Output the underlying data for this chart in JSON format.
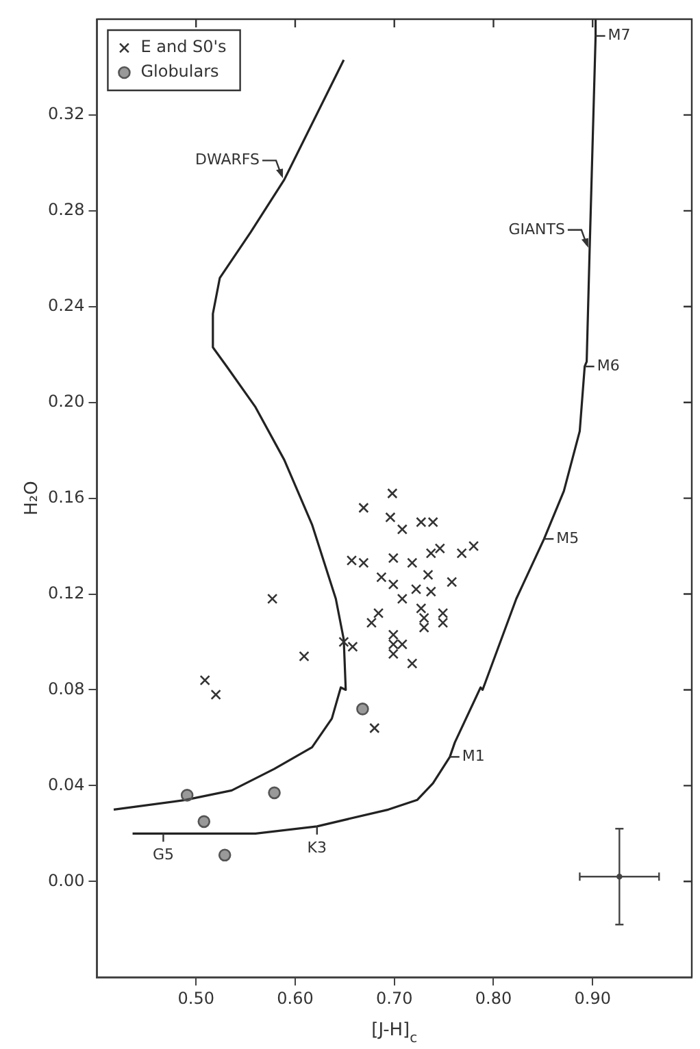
{
  "chart_data": {
    "type": "scatter",
    "xlabel": "[J-H]$_{c}$",
    "ylabel": "H₂O",
    "xlim": [
      0.4,
      1.0
    ],
    "ylim": [
      -0.04,
      0.36
    ],
    "xticks": [
      {
        "value": 0.5,
        "label": "0.50"
      },
      {
        "value": 0.6,
        "label": "0.60"
      },
      {
        "value": 0.7,
        "label": "0.70"
      },
      {
        "value": 0.8,
        "label": "0.80"
      },
      {
        "value": 0.9,
        "label": "0.90"
      }
    ],
    "yticks": [
      {
        "value": 0,
        "label": "0.00"
      },
      {
        "value": 0.04,
        "label": "0.04"
      },
      {
        "value": 0.08,
        "label": "0.08"
      },
      {
        "value": 0.12,
        "label": "0.12"
      },
      {
        "value": 0.16,
        "label": "0.16"
      },
      {
        "value": 0.2,
        "label": "0.20"
      },
      {
        "value": 0.24,
        "label": "0.24"
      },
      {
        "value": 0.28,
        "label": "0.28"
      },
      {
        "value": 0.32,
        "label": "0.32"
      }
    ],
    "grid": false,
    "legend": "top left",
    "series": [
      {
        "name": "E and S0's",
        "marker": "cross",
        "color": "#333333",
        "x": [
          0.698,
          0.669,
          0.696,
          0.708,
          0.727,
          0.739,
          0.746,
          0.737,
          0.78,
          0.768,
          0.657,
          0.669,
          0.699,
          0.718,
          0.734,
          0.687,
          0.699,
          0.758,
          0.722,
          0.737,
          0.708,
          0.727,
          0.749,
          0.749,
          0.684,
          0.677,
          0.73,
          0.73,
          0.649,
          0.658,
          0.699,
          0.699,
          0.708,
          0.699,
          0.718,
          0.577,
          0.609,
          0.509,
          0.52,
          0.68
        ],
        "values": [
          0.162,
          0.156,
          0.152,
          0.147,
          0.15,
          0.15,
          0.139,
          0.137,
          0.14,
          0.137,
          0.134,
          0.133,
          0.135,
          0.133,
          0.128,
          0.127,
          0.124,
          0.125,
          0.122,
          0.121,
          0.118,
          0.114,
          0.112,
          0.108,
          0.112,
          0.108,
          0.11,
          0.106,
          0.1,
          0.098,
          0.103,
          0.099,
          0.099,
          0.095,
          0.091,
          0.118,
          0.094,
          0.084,
          0.078,
          0.064
        ]
      },
      {
        "name": "Globulars",
        "marker": "circle",
        "color": "#555555",
        "x": [
          0.668,
          0.491,
          0.579,
          0.508,
          0.529
        ],
        "values": [
          0.072,
          0.036,
          0.037,
          0.025,
          0.011
        ]
      },
      {
        "type": "line",
        "marker": "none",
        "color": "#222222",
        "x": [
          0.649,
          0.589,
          0.555,
          0.524,
          0.517,
          0.517,
          0.531,
          0.56,
          0.589,
          0.617,
          0.641,
          0.649,
          0.651,
          0.646,
          0.637,
          0.617,
          0.579,
          0.536,
          0.489,
          0.417
        ],
        "values": [
          0.343,
          0.293,
          0.271,
          0.252,
          0.237,
          0.223,
          0.215,
          0.198,
          0.176,
          0.149,
          0.118,
          0.101,
          0.08,
          0.081,
          0.068,
          0.056,
          0.047,
          0.038,
          0.034,
          0.03
        ]
      },
      {
        "type": "line",
        "marker": "none",
        "color": "#222222",
        "x": [
          0.903,
          0.903,
          0.897,
          0.894,
          0.892,
          0.887,
          0.871,
          0.851,
          0.823,
          0.789,
          0.787,
          0.761,
          0.756,
          0.739,
          0.723,
          0.694,
          0.622,
          0.56,
          0.467,
          0.436
        ],
        "values": [
          0.36,
          0.353,
          0.264,
          0.217,
          0.215,
          0.188,
          0.163,
          0.143,
          0.118,
          0.08,
          0.081,
          0.058,
          0.052,
          0.041,
          0.034,
          0.03,
          0.023,
          0.02,
          0.02,
          0.02
        ]
      },
      {
        "color": "#444444",
        "x": [
          0.927
        ],
        "values": [
          0.002
        ],
        "errors": [
          0.02
        ],
        "xerrors": [
          0.04
        ]
      }
    ],
    "annotations": [
      {
        "text": "DWARFS",
        "x": 0.589,
        "y": 0.293
      },
      {
        "text": "GIANTS",
        "x": 0.897,
        "y": 0.264
      },
      {
        "text": "M7",
        "x": 0.903,
        "y": 0.353
      },
      {
        "text": "M6",
        "x": 0.892,
        "y": 0.215
      },
      {
        "text": "M5",
        "x": 0.851,
        "y": 0.143
      },
      {
        "text": "M1",
        "x": 0.756,
        "y": 0.052
      },
      {
        "text": "K3",
        "x": 0.622,
        "y": 0.023
      },
      {
        "text": "G5",
        "x": 0.467,
        "y": 0.02
      }
    ]
  }
}
